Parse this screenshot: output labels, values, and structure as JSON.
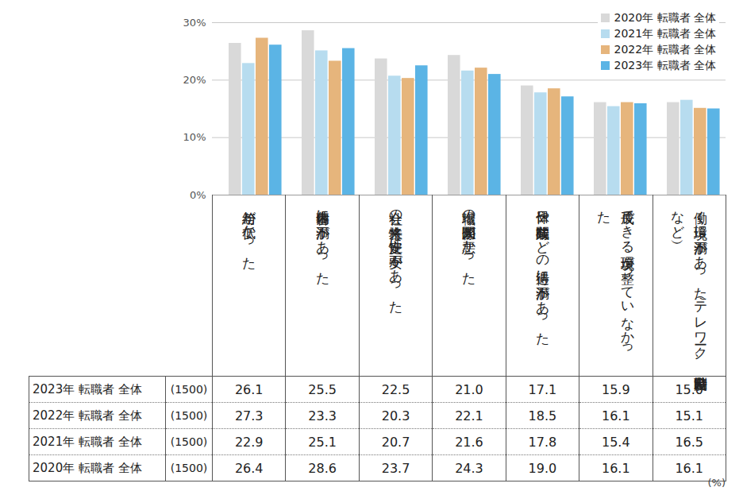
{
  "chart_data": {
    "type": "bar",
    "categories": [
      "給与が低かった",
      "仕事内容に不満があった",
      "会社の将来性、安定性に不安があった",
      "職場の人間関係が悪かった",
      "休日や残業時間などの待遇に不満があった",
      "成長できる環境が整っていなかった",
      "働く環境に不満があった（テレワーク、時差出勤制度など）"
    ],
    "series": [
      {
        "name": "2020年 転職者 全体",
        "color": "#d9d9d9",
        "values": [
          26.4,
          28.6,
          23.7,
          24.3,
          19.0,
          16.1,
          16.1
        ],
        "value_labels": [
          "26.4",
          "28.6",
          "23.7",
          "24.3",
          "19.0",
          "16.1",
          "16.1"
        ],
        "sample_size": {
          "value": 1500,
          "label": "(1500)"
        }
      },
      {
        "name": "2021年 転職者 全体",
        "color": "#b7dcef",
        "values": [
          22.9,
          25.1,
          20.7,
          21.6,
          17.8,
          15.4,
          16.5
        ],
        "value_labels": [
          "22.9",
          "25.1",
          "20.7",
          "21.6",
          "17.8",
          "15.4",
          "16.5"
        ],
        "sample_size": {
          "value": 1500,
          "label": "(1500)"
        }
      },
      {
        "name": "2022年 転職者 全体",
        "color": "#e6b57c",
        "values": [
          27.3,
          23.3,
          20.3,
          22.1,
          18.5,
          16.1,
          15.1
        ],
        "value_labels": [
          "27.3",
          "23.3",
          "20.3",
          "22.1",
          "18.5",
          "16.1",
          "15.1"
        ],
        "sample_size": {
          "value": 1500,
          "label": "(1500)"
        }
      },
      {
        "name": "2023年 転職者 全体",
        "color": "#5bb4e5",
        "values": [
          26.1,
          25.5,
          22.5,
          21.0,
          17.1,
          15.9,
          15.0
        ],
        "value_labels": [
          "26.1",
          "25.5",
          "22.5",
          "21.0",
          "17.1",
          "15.9",
          "15.0"
        ],
        "sample_size": {
          "value": 1500,
          "label": "(1500)"
        }
      }
    ],
    "ylim": [
      0,
      30
    ],
    "yticks": [
      {
        "value": 0,
        "label": "0%"
      },
      {
        "value": 10,
        "label": "10%"
      },
      {
        "value": 20,
        "label": "20%"
      },
      {
        "value": 30,
        "label": "30%"
      }
    ],
    "grid": true,
    "legend": "upper right",
    "tick_labels": "y",
    "unit_note": "(%)"
  }
}
